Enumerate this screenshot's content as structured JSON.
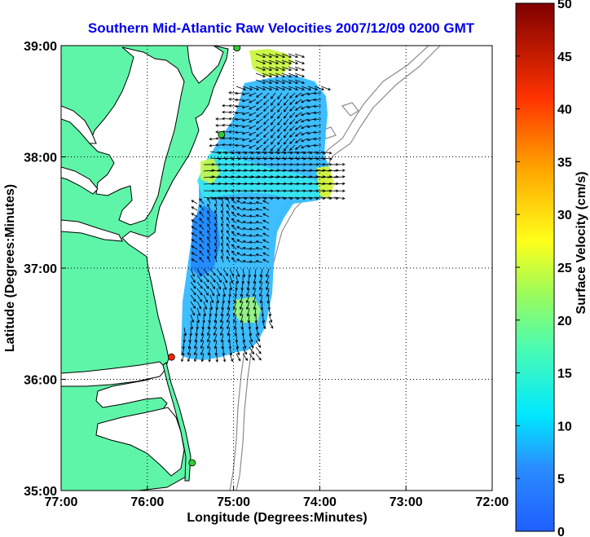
{
  "chart_data": {
    "type": "heatmap",
    "title": "Southern Mid-Atlantic Raw Velocities 2007/12/09 0200 GMT",
    "xlabel": "Longitude (Degrees:Minutes)",
    "ylabel": "Latitude (Degrees:Minutes)",
    "x_ticks": [
      "77:00",
      "76:00",
      "75:00",
      "74:00",
      "73:00",
      "72:00"
    ],
    "y_ticks": [
      "39:00",
      "38:00",
      "37:00",
      "36:00",
      "35:00"
    ],
    "xlim_deg_west": [
      77,
      72
    ],
    "ylim_deg_north": [
      35,
      39
    ],
    "grid": "dotted",
    "colorbar": {
      "label": "Surface Velocity (cm/s)",
      "ticks": [
        "50",
        "45",
        "40",
        "35",
        "30",
        "25",
        "20",
        "15",
        "10",
        "5",
        "0"
      ],
      "range": [
        0,
        50
      ],
      "colormap": "jet",
      "position": "right"
    },
    "land_color": "#5ff5a8",
    "coastline_color": "#000000",
    "bathymetry_color": "#8c8c8c",
    "vector_color": "#000000",
    "stations": [
      {
        "name": "station-north",
        "lon_w": 74.96,
        "lat_n": 38.98,
        "color": "#33cc33"
      },
      {
        "name": "station-mid",
        "lon_w": 75.14,
        "lat_n": 38.2,
        "color": "#33cc33"
      },
      {
        "name": "station-duck",
        "lon_w": 75.72,
        "lat_n": 36.2,
        "color": "#ff2200"
      },
      {
        "name": "station-south",
        "lon_w": 75.48,
        "lat_n": 35.25,
        "color": "#33cc33"
      }
    ],
    "speed_summary": {
      "dominant_range_cm_s": [
        5,
        15
      ],
      "max_cm_s": 30
    }
  }
}
